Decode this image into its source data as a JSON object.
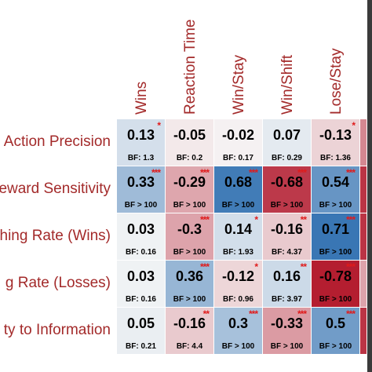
{
  "colors": {
    "label": "#a32a2a",
    "star": "#e01b1b",
    "strong_positive": "#2166ac",
    "strong_negative": "#b2182b",
    "neutral": "#f7f7f7"
  },
  "chart_data": {
    "type": "heatmap",
    "columns": [
      "Wins",
      "Reaction Time",
      "Win/Stay",
      "Win/Shift",
      "Lose/Stay"
    ],
    "rows": [
      "Action Precision",
      "eward Sensitivity",
      "hing Rate (Wins)",
      "g Rate (Losses)",
      "ty to Information"
    ],
    "cells": [
      [
        {
          "value": "0.13",
          "bf": "BF: 1.3",
          "stars": "*",
          "shade": 0.13
        },
        {
          "value": "-0.05",
          "bf": "BF: 0.2",
          "stars": "",
          "shade": -0.05
        },
        {
          "value": "-0.02",
          "bf": "BF: 0.17",
          "stars": "",
          "shade": -0.02
        },
        {
          "value": "0.07",
          "bf": "BF: 0.29",
          "stars": "",
          "shade": 0.07
        },
        {
          "value": "-0.13",
          "bf": "BF: 1.36",
          "stars": "*",
          "shade": -0.13
        }
      ],
      [
        {
          "value": "0.33",
          "bf": "BF > 100",
          "stars": "***",
          "shade": 0.33
        },
        {
          "value": "-0.29",
          "bf": "BF > 100",
          "stars": "***",
          "shade": -0.29
        },
        {
          "value": "0.68",
          "bf": "BF > 100",
          "stars": "***",
          "shade": 0.68
        },
        {
          "value": "-0.68",
          "bf": "BF > 100",
          "stars": "***",
          "shade": -0.68
        },
        {
          "value": "0.54",
          "bf": "BF > 100",
          "stars": "***",
          "shade": 0.54
        }
      ],
      [
        {
          "value": "0.03",
          "bf": "BF: 0.16",
          "stars": "",
          "shade": 0.03
        },
        {
          "value": "-0.3",
          "bf": "BF > 100",
          "stars": "***",
          "shade": -0.3
        },
        {
          "value": "0.14",
          "bf": "BF: 1.93",
          "stars": "*",
          "shade": 0.14
        },
        {
          "value": "-0.16",
          "bf": "BF: 4.37",
          "stars": "**",
          "shade": -0.16
        },
        {
          "value": "0.71",
          "bf": "BF > 100",
          "stars": "***",
          "shade": 0.71
        }
      ],
      [
        {
          "value": "0.03",
          "bf": "BF: 0.16",
          "stars": "",
          "shade": 0.03
        },
        {
          "value": "0.36",
          "bf": "BF > 100",
          "stars": "***",
          "shade": 0.36
        },
        {
          "value": "-0.12",
          "bf": "BF: 0.96",
          "stars": "*",
          "shade": -0.12
        },
        {
          "value": "0.16",
          "bf": "BF: 3.97",
          "stars": "**",
          "shade": 0.16
        },
        {
          "value": "-0.78",
          "bf": "BF > 100",
          "stars": "***",
          "shade": -0.78
        }
      ],
      [
        {
          "value": "0.05",
          "bf": "BF: 0.21",
          "stars": "",
          "shade": 0.05
        },
        {
          "value": "-0.16",
          "bf": "BF: 4.4",
          "stars": "**",
          "shade": -0.16
        },
        {
          "value": "0.3",
          "bf": "BF > 100",
          "stars": "***",
          "shade": 0.3
        },
        {
          "value": "-0.33",
          "bf": "BF > 100",
          "stars": "***",
          "shade": -0.33
        },
        {
          "value": "0.5",
          "bf": "BF > 100",
          "stars": "***",
          "shade": 0.5
        }
      ]
    ],
    "extra_partial_column_shades": [
      -0.4,
      -0.7,
      -0.7,
      -0.3,
      -0.7
    ],
    "grid": false,
    "legend": "none"
  }
}
